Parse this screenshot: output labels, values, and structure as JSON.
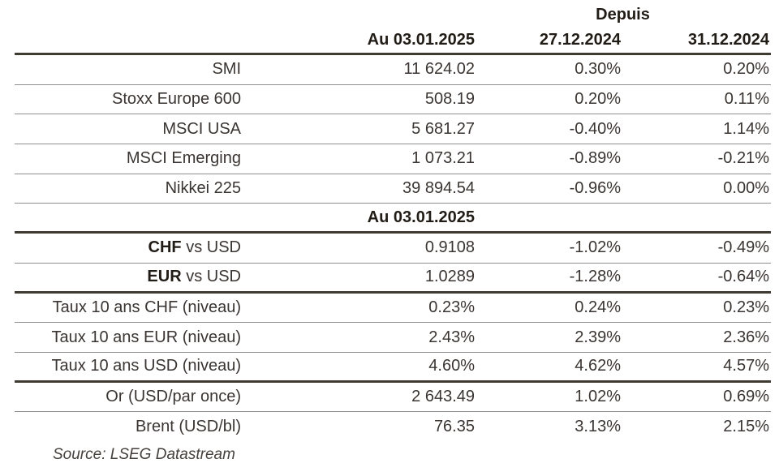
{
  "table": {
    "header": {
      "depuis": "Depuis",
      "col_value": "Au 03.01.2025",
      "col_since_1": "27.12.2024",
      "col_since_2": "31.12.2024"
    },
    "subheader": {
      "col_value": "Au 03.01.2025"
    },
    "sections": [
      {
        "name": "indices",
        "rows": [
          {
            "label": "SMI",
            "value": "11 624.02",
            "since_27_12": "0.30%",
            "since_31_12": "0.20%"
          },
          {
            "label": "Stoxx Europe 600",
            "value": "508.19",
            "since_27_12": "0.20%",
            "since_31_12": "0.11%"
          },
          {
            "label": "MSCI USA",
            "value": "5 681.27",
            "since_27_12": "-0.40%",
            "since_31_12": "1.14%"
          },
          {
            "label": "MSCI Emerging",
            "value": "1 073.21",
            "since_27_12": "-0.89%",
            "since_31_12": "-0.21%"
          },
          {
            "label": "Nikkei 225",
            "value": "39 894.54",
            "since_27_12": "-0.96%",
            "since_31_12": "0.00%"
          }
        ]
      },
      {
        "name": "currencies",
        "rows": [
          {
            "label_bold": "CHF",
            "label_rest": " vs USD",
            "value": "0.9108",
            "since_27_12": "-1.02%",
            "since_31_12": "-0.49%"
          },
          {
            "label_bold": "EUR",
            "label_rest": " vs USD",
            "value": "1.0289",
            "since_27_12": "-1.28%",
            "since_31_12": "-0.64%"
          }
        ]
      },
      {
        "name": "rates",
        "rows": [
          {
            "label": "Taux 10 ans CHF (niveau)",
            "value": "0.23%",
            "since_27_12": "0.24%",
            "since_31_12": "0.23%"
          },
          {
            "label": "Taux 10 ans EUR (niveau)",
            "value": "2.43%",
            "since_27_12": "2.39%",
            "since_31_12": "2.36%"
          },
          {
            "label": "Taux 10 ans USD (niveau)",
            "value": "4.60%",
            "since_27_12": "4.62%",
            "since_31_12": "4.57%"
          }
        ]
      },
      {
        "name": "commodities",
        "rows": [
          {
            "label": "Or (USD/par once)",
            "value": "2 643.49",
            "since_27_12": "1.02%",
            "since_31_12": "0.69%"
          },
          {
            "label": "Brent (USD/bl)",
            "value": "76.35",
            "since_27_12": "3.13%",
            "since_31_12": "2.15%"
          }
        ]
      }
    ]
  },
  "source": "Source: LSEG Datastream",
  "colors": {
    "thick_rule": "#3f3a32",
    "thin_rule": "#8f8f8f",
    "text": "#3a3532",
    "header_text": "#221c16"
  }
}
